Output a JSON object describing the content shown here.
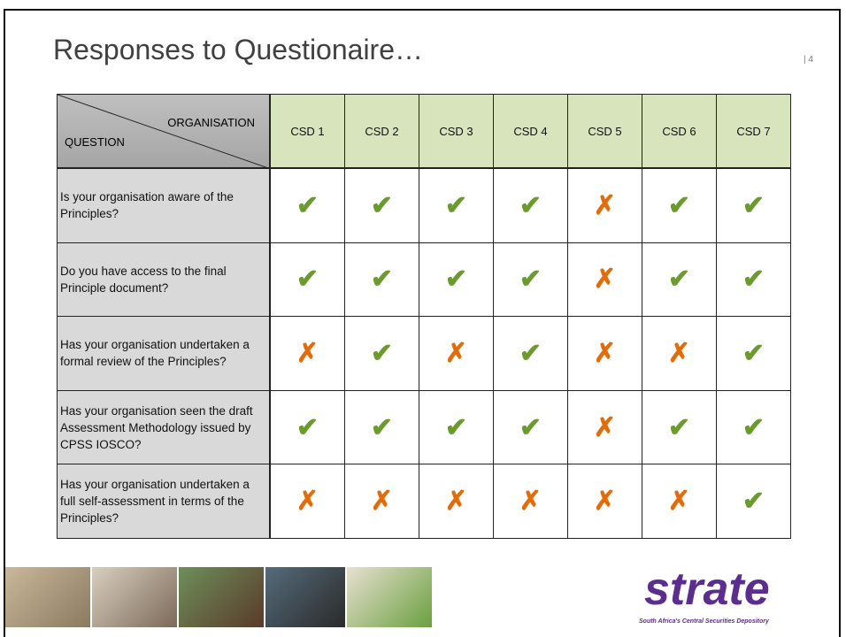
{
  "header": {
    "title": "Responses to Questionaire…",
    "page_number": "| 4"
  },
  "table": {
    "corner_top": "ORGANISATION",
    "corner_bottom": "QUESTION",
    "columns": [
      "CSD 1",
      "CSD 2",
      "CSD 3",
      "CSD 4",
      "CSD 5",
      "CSD 6",
      "CSD 7"
    ],
    "rows": [
      {
        "question": "Is your organisation aware of the Principles?",
        "answers": [
          "✔",
          "✔",
          "✔",
          "✔",
          "✗",
          "✔",
          "✔"
        ]
      },
      {
        "question": "Do you have access to the final Principle document?",
        "answers": [
          "✔",
          "✔",
          "✔",
          "✔",
          "✗",
          "✔",
          "✔"
        ]
      },
      {
        "question": "Has your organisation undertaken a formal review of the Principles?",
        "answers": [
          "✗",
          "✔",
          "✗",
          "✔",
          "✗",
          "✗",
          "✔"
        ]
      },
      {
        "question": "Has your organisation seen the draft Assessment Methodology issued by CPSS IOSCO?",
        "answers": [
          "✔",
          "✔",
          "✔",
          "✔",
          "✗",
          "✔",
          "✔"
        ]
      },
      {
        "question": "Has your organisation undertaken a full self-assessment in terms of the Principles?",
        "answers": [
          "✗",
          "✗",
          "✗",
          "✗",
          "✗",
          "✗",
          "✔"
        ]
      }
    ],
    "mark_colors": {
      "✔": "#6b9a2e",
      "✗": "#e36c0a"
    }
  },
  "footer": {
    "logo": "strate",
    "tagline": "South Africa's Central Securities Depository"
  }
}
